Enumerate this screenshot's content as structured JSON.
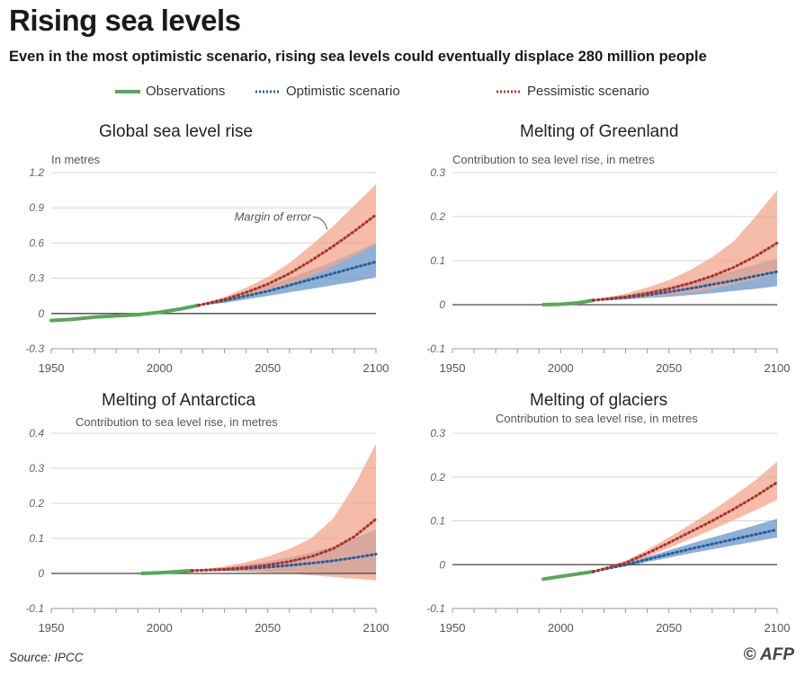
{
  "header": {
    "title": "Rising sea levels",
    "subtitle": "Even in the most optimistic scenario, rising sea levels could eventually displace 280 million people"
  },
  "legend": {
    "items": [
      {
        "label": "Observations",
        "color": "#5aa65a",
        "style": "solid"
      },
      {
        "label": "Optimistic scenario",
        "color": "#2f5f9a",
        "style": "dotted"
      },
      {
        "label": "Pessimistic scenario",
        "color": "#b23a33",
        "style": "dotted"
      }
    ]
  },
  "colors": {
    "observations": "#5aa65a",
    "optimistic_line": "#2a5d96",
    "optimistic_band": "#5f8fc4",
    "pessimistic_line": "#a8342c",
    "pessimistic_band": "#f0a58c",
    "axis": "#444444",
    "grid": "#d4d4d4"
  },
  "footer": {
    "source": "Source: IPCC",
    "credit": "© AFP"
  },
  "chart_data": [
    {
      "type": "line",
      "title": "Global sea level rise",
      "ylabel": "In metres",
      "xlim": [
        1950,
        2100
      ],
      "ylim": [
        -0.3,
        1.2
      ],
      "xticks": [
        1950,
        2000,
        2050,
        2100
      ],
      "yticks": [
        -0.3,
        0,
        0.3,
        0.6,
        0.9,
        1.2
      ],
      "ytick_labels": [
        "-0.3",
        "0",
        "0.3",
        "0.6",
        "0.9",
        "1.2"
      ],
      "grid": true,
      "annotation": {
        "text": "Margin of error",
        "x": 2075,
        "y": 0.73
      },
      "series": [
        {
          "name": "Observations",
          "style": "solid",
          "x": [
            1950,
            1960,
            1970,
            1980,
            1990,
            2000,
            2010,
            2018
          ],
          "y": [
            -0.06,
            -0.05,
            -0.03,
            -0.02,
            -0.01,
            0.01,
            0.04,
            0.07
          ]
        },
        {
          "name": "Optimistic scenario",
          "style": "dotted",
          "x": [
            2018,
            2030,
            2040,
            2050,
            2060,
            2070,
            2080,
            2090,
            2100
          ],
          "y": [
            0.07,
            0.11,
            0.15,
            0.19,
            0.24,
            0.29,
            0.34,
            0.39,
            0.44
          ],
          "band_low": [
            0.07,
            0.09,
            0.12,
            0.15,
            0.18,
            0.21,
            0.24,
            0.27,
            0.31
          ],
          "band_high": [
            0.07,
            0.13,
            0.18,
            0.24,
            0.3,
            0.37,
            0.44,
            0.52,
            0.6
          ]
        },
        {
          "name": "Pessimistic scenario",
          "style": "dotted",
          "x": [
            2018,
            2030,
            2040,
            2050,
            2060,
            2070,
            2080,
            2090,
            2100
          ],
          "y": [
            0.07,
            0.12,
            0.18,
            0.25,
            0.34,
            0.45,
            0.57,
            0.7,
            0.84
          ],
          "band_low": [
            0.07,
            0.1,
            0.14,
            0.19,
            0.25,
            0.32,
            0.4,
            0.49,
            0.59
          ],
          "band_high": [
            0.07,
            0.14,
            0.22,
            0.31,
            0.43,
            0.58,
            0.74,
            0.92,
            1.1
          ]
        }
      ]
    },
    {
      "type": "line",
      "title": "Melting of Greenland",
      "ylabel": "Contribution to sea level rise, in metres",
      "xlim": [
        1950,
        2100
      ],
      "ylim": [
        -0.1,
        0.3
      ],
      "xticks": [
        1950,
        2000,
        2050,
        2100
      ],
      "yticks": [
        -0.1,
        0,
        0.1,
        0.2,
        0.3
      ],
      "ytick_labels": [
        "-0.1",
        "0",
        "0.1",
        "0.2",
        "0.3"
      ],
      "grid": true,
      "series": [
        {
          "name": "Observations",
          "style": "solid",
          "x": [
            1992,
            2000,
            2008,
            2015
          ],
          "y": [
            0.0,
            0.001,
            0.004,
            0.01
          ]
        },
        {
          "name": "Optimistic scenario",
          "style": "dotted",
          "x": [
            2015,
            2030,
            2040,
            2050,
            2060,
            2070,
            2080,
            2090,
            2100
          ],
          "y": [
            0.01,
            0.016,
            0.022,
            0.029,
            0.037,
            0.046,
            0.055,
            0.065,
            0.075
          ],
          "band_low": [
            0.01,
            0.012,
            0.015,
            0.018,
            0.022,
            0.026,
            0.031,
            0.036,
            0.042
          ],
          "band_high": [
            0.01,
            0.021,
            0.03,
            0.041,
            0.052,
            0.064,
            0.077,
            0.091,
            0.105
          ]
        },
        {
          "name": "Pessimistic scenario",
          "style": "dotted",
          "x": [
            2015,
            2030,
            2040,
            2050,
            2060,
            2070,
            2080,
            2090,
            2100
          ],
          "y": [
            0.01,
            0.018,
            0.026,
            0.036,
            0.049,
            0.065,
            0.085,
            0.11,
            0.14
          ],
          "band_low": [
            0.01,
            0.013,
            0.017,
            0.022,
            0.028,
            0.036,
            0.046,
            0.058,
            0.072
          ],
          "band_high": [
            0.01,
            0.025,
            0.039,
            0.056,
            0.079,
            0.108,
            0.144,
            0.2,
            0.26
          ]
        }
      ]
    },
    {
      "type": "line",
      "title": "Melting of Antarctica",
      "ylabel": "Contribution to sea level rise, in metres",
      "xlim": [
        1950,
        2100
      ],
      "ylim": [
        -0.1,
        0.4
      ],
      "xticks": [
        1950,
        2000,
        2050,
        2100
      ],
      "yticks": [
        -0.1,
        0,
        0.1,
        0.2,
        0.3,
        0.4
      ],
      "ytick_labels": [
        "-0.1",
        "0",
        "0.1",
        "0.2",
        "0.3",
        "0.4"
      ],
      "grid": true,
      "series": [
        {
          "name": "Observations",
          "style": "solid",
          "x": [
            1992,
            2000,
            2008,
            2015
          ],
          "y": [
            0.0,
            0.002,
            0.005,
            0.008
          ]
        },
        {
          "name": "Optimistic scenario",
          "style": "dotted",
          "x": [
            2015,
            2030,
            2040,
            2050,
            2060,
            2070,
            2080,
            2090,
            2100
          ],
          "y": [
            0.008,
            0.011,
            0.014,
            0.018,
            0.023,
            0.029,
            0.036,
            0.045,
            0.055
          ],
          "band_low": [
            0.008,
            0.007,
            0.006,
            0.005,
            0.004,
            0.003,
            0.002,
            0.001,
            0.0
          ],
          "band_high": [
            0.008,
            0.016,
            0.025,
            0.035,
            0.046,
            0.06,
            0.077,
            0.1,
            0.125
          ]
        },
        {
          "name": "Pessimistic scenario",
          "style": "dotted",
          "x": [
            2015,
            2030,
            2040,
            2050,
            2060,
            2070,
            2080,
            2090,
            2100
          ],
          "y": [
            0.008,
            0.012,
            0.017,
            0.024,
            0.034,
            0.048,
            0.07,
            0.105,
            0.155
          ],
          "band_low": [
            0.008,
            0.006,
            0.004,
            0.002,
            0.0,
            -0.005,
            -0.01,
            -0.015,
            -0.02
          ],
          "band_high": [
            0.008,
            0.02,
            0.032,
            0.048,
            0.07,
            0.1,
            0.155,
            0.25,
            0.37
          ]
        }
      ]
    },
    {
      "type": "line",
      "title": "Melting of glaciers",
      "ylabel": "Contribution to sea level rise, in metres",
      "xlim": [
        1950,
        2100
      ],
      "ylim": [
        -0.1,
        0.3
      ],
      "xticks": [
        1950,
        2000,
        2050,
        2100
      ],
      "yticks": [
        -0.1,
        0,
        0.1,
        0.2,
        0.3
      ],
      "ytick_labels": [
        "-0.1",
        "0",
        "0.1",
        "0.2",
        "0.3"
      ],
      "grid": true,
      "series": [
        {
          "name": "Observations",
          "style": "solid",
          "x": [
            1992,
            2000,
            2008,
            2015
          ],
          "y": [
            -0.033,
            -0.027,
            -0.021,
            -0.016
          ]
        },
        {
          "name": "Optimistic scenario",
          "style": "dotted",
          "x": [
            2015,
            2030,
            2040,
            2050,
            2060,
            2070,
            2080,
            2090,
            2100
          ],
          "y": [
            -0.016,
            0.0,
            0.012,
            0.024,
            0.036,
            0.047,
            0.058,
            0.069,
            0.08
          ],
          "band_low": [
            -0.016,
            -0.004,
            0.006,
            0.016,
            0.026,
            0.035,
            0.044,
            0.053,
            0.062
          ],
          "band_high": [
            -0.016,
            0.004,
            0.018,
            0.033,
            0.048,
            0.062,
            0.076,
            0.09,
            0.105
          ]
        },
        {
          "name": "Pessimistic scenario",
          "style": "dotted",
          "x": [
            2015,
            2030,
            2040,
            2050,
            2060,
            2070,
            2080,
            2090,
            2100
          ],
          "y": [
            -0.016,
            0.004,
            0.026,
            0.05,
            0.075,
            0.1,
            0.127,
            0.156,
            0.188
          ],
          "band_low": [
            -0.016,
            0.0,
            0.018,
            0.038,
            0.059,
            0.08,
            0.102,
            0.124,
            0.148
          ],
          "band_high": [
            -0.016,
            0.009,
            0.034,
            0.062,
            0.092,
            0.123,
            0.157,
            0.193,
            0.235
          ]
        }
      ]
    }
  ]
}
